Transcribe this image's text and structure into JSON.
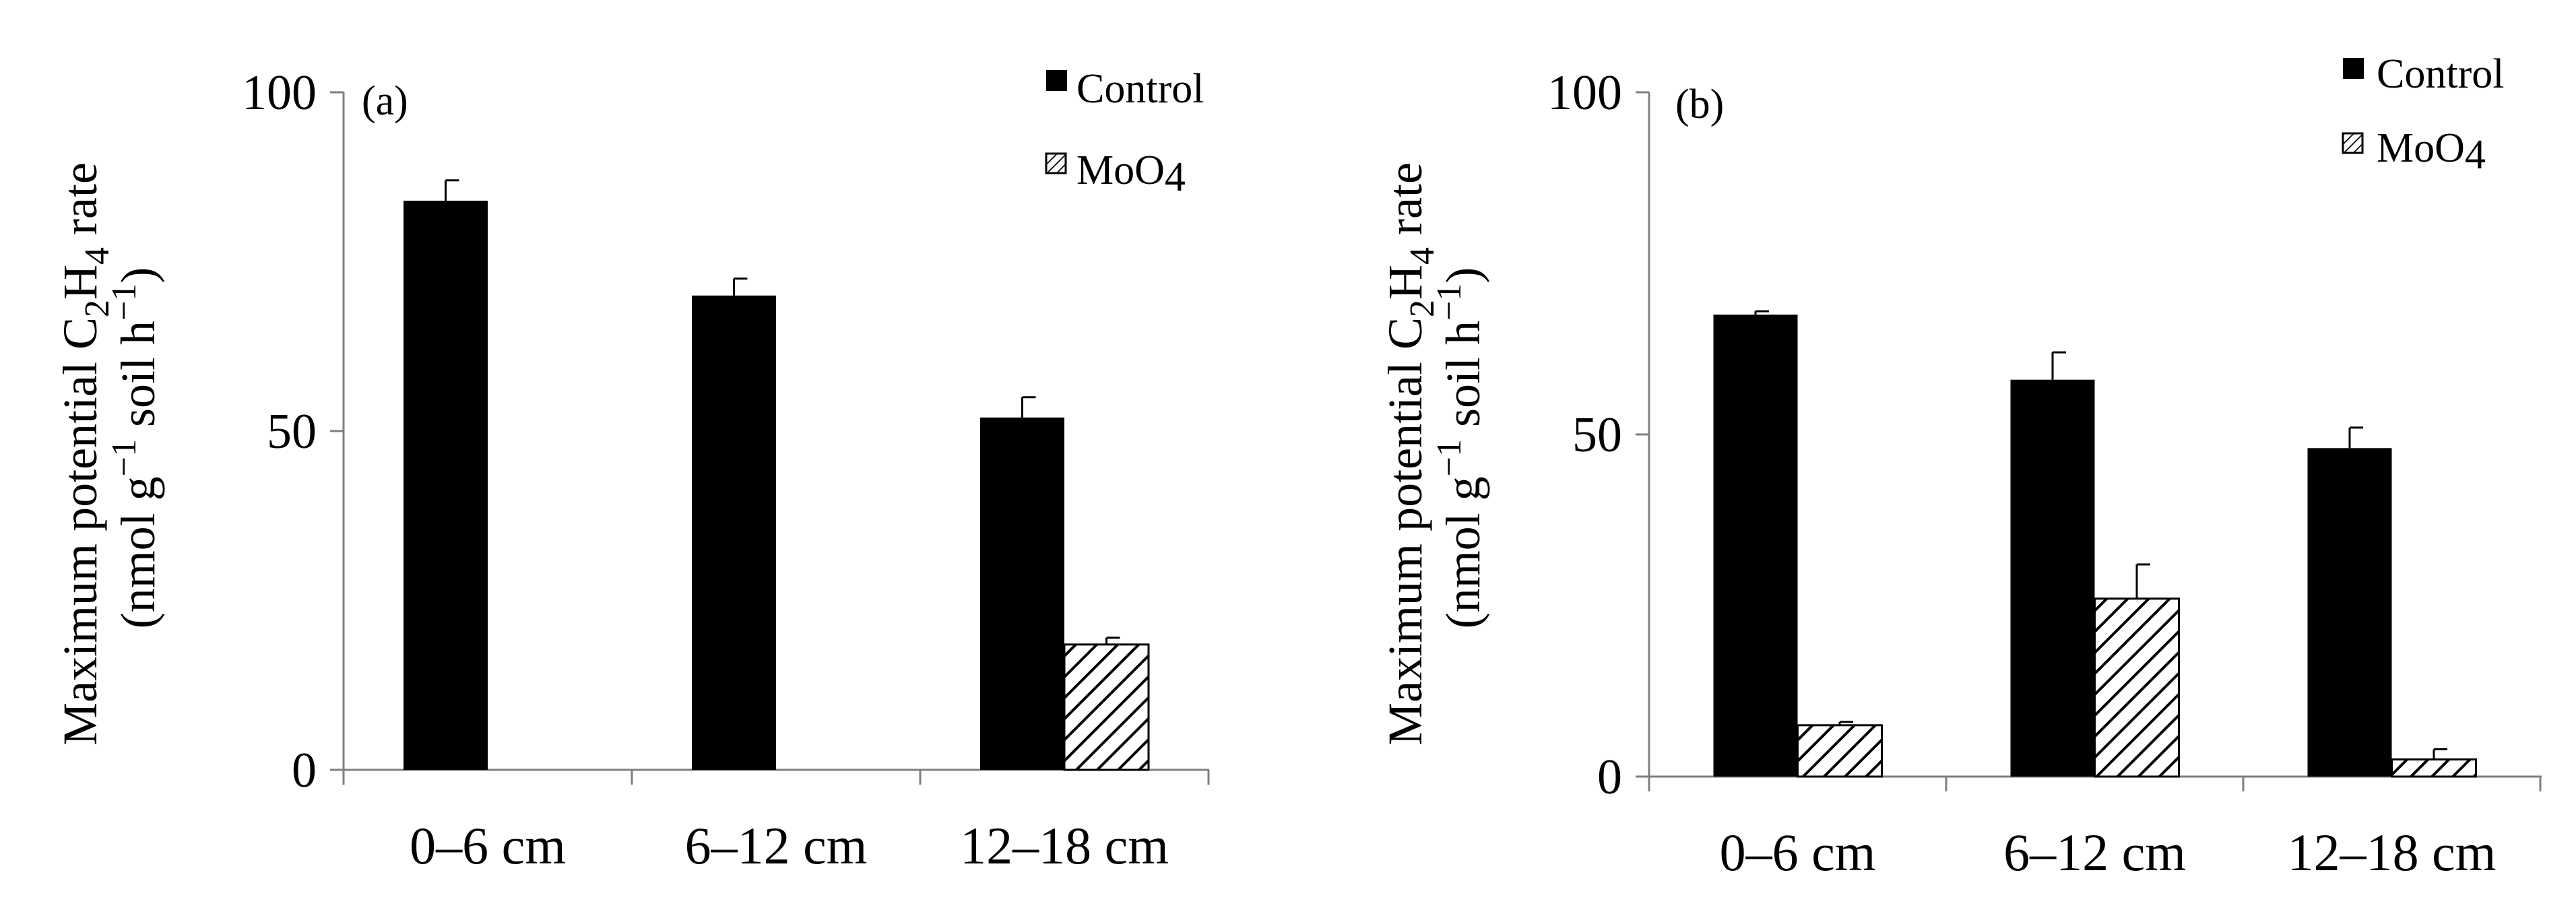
{
  "chart_data": [
    {
      "type": "bar",
      "panel_label": "(a)",
      "categories": [
        "0–6 cm",
        "6–12 cm",
        "12–18 cm"
      ],
      "series": [
        {
          "name": "Control",
          "values": [
            84,
            70,
            52
          ],
          "errors": [
            3,
            2.5,
            3
          ]
        },
        {
          "name": "MoO4",
          "values": [
            null,
            null,
            18.5
          ],
          "errors": [
            null,
            null,
            1
          ]
        }
      ],
      "ylim": [
        0,
        100
      ],
      "yticks": [
        0,
        50,
        100
      ],
      "ylabel": {
        "line1_pre": "Maximum potential C",
        "sub1": "2",
        "mid": "H",
        "sub2": "4",
        "post": " rate",
        "line2_pre": "(nmol g",
        "sup1": "−1",
        "line2_mid": " soil h",
        "sup2": "−1",
        "line2_post": ")"
      },
      "legend": {
        "control": "Control",
        "moo4_base": "MoO",
        "moo4_sub": "4"
      }
    },
    {
      "type": "bar",
      "panel_label": "(b)",
      "categories": [
        "0–6 cm",
        "6–12 cm",
        "12–18 cm"
      ],
      "series": [
        {
          "name": "Control",
          "values": [
            67.5,
            58,
            48
          ],
          "errors": [
            0.5,
            4,
            3
          ]
        },
        {
          "name": "MoO4",
          "values": [
            7.5,
            26,
            2.5
          ],
          "errors": [
            0.5,
            5,
            1.5
          ]
        }
      ],
      "ylim": [
        0,
        100
      ],
      "yticks": [
        0,
        50,
        100
      ],
      "ylabel": {
        "line1_pre": "Maximum potential C",
        "sub1": "2",
        "mid": "H",
        "sub2": "4",
        "post": " rate",
        "line2_pre": "(nmol g",
        "sup1": "−1",
        "line2_mid": " soil h",
        "sup2": "−1",
        "line2_post": ")"
      },
      "legend": {
        "control": "Control",
        "moo4_base": "MoO",
        "moo4_sub": "4"
      }
    }
  ],
  "colors": {
    "control": "#000000",
    "moo4_stroke": "#000000",
    "moo4_fill": "#ffffff",
    "axis": "#7f7f7f"
  }
}
